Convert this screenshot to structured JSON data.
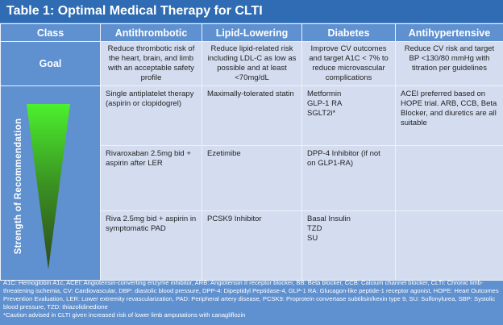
{
  "title": "Table 1: Optimal Medical Therapy for CLTI",
  "headers": [
    "Class",
    "Antithrombotic",
    "Lipid-Lowering",
    "Diabetes",
    "Antihypertensive"
  ],
  "goal": {
    "label": "Goal",
    "cells": [
      "Reduce thrombotic risk of the heart, brain, and limb with an acceptable safety profile",
      "Reduce lipid-related risk including LDL-C as low as possible and at least <70mg/dL",
      "Improve CV outcomes and target A1C < 7% to reduce microvascular complications",
      "Reduce CV risk and target BP <130/80 mmHg with titration per guidelines"
    ]
  },
  "strength_label": "Strength of Recommendation",
  "rows": [
    {
      "antithrombotic": "Single antiplatelet therapy (aspirin or clopidogrel)",
      "lipid": "Maximally-tolerated statin",
      "diabetes": [
        "Metformin",
        "GLP-1 RA",
        "SGLT2i*"
      ],
      "antihypertensive": "ACEI preferred based on HOPE trial. ARB, CCB, Beta Blocker, and diuretics are all suitable"
    },
    {
      "antithrombotic": "Rivaroxaban 2.5mg bid + aspirin after LER",
      "lipid": "Ezetimibe",
      "diabetes": [
        "DPP-4 Inhibitor (if not on GLP1-RA)"
      ],
      "antihypertensive": ""
    },
    {
      "antithrombotic": "Riva 2.5mg bid + aspirin in symptomatic PAD",
      "lipid": "PCSK9 Inhibitor",
      "diabetes": [
        "Basal Insulin",
        "TZD",
        "SU"
      ],
      "antihypertensive": ""
    }
  ],
  "footnote": "A1C: Hemoglobin A1c, ACEI: Angiotensin-converting enzyme inhibitor, ARB: Angiotensin II receptor blocker, BB: Beta blocker, CCB: Calcium channel blocker, CLTI: Chronic limb-threatening ischemia, CV: Cardiovascular, DBP: diastolic blood pressure, DPP-4: Dipeptidyl Peptidase-4, GLP-1 RA: Glucagon-like peptide-1 receptor agonist, HOPE: Heart Outcomes Prevention Evaluation, LER: Lower extremity revascularization, PAD: Peripheral artery disease, PCSK9: Proprotein convertase subtilisin/kexin type 9, SU: Sulfonylurea, SBP: Systolic blood pressure, TZD: thiazolidinedione",
  "caution": "*Caution advised in CLTI given increased risk of lower limb amputations with canagliflozin"
}
